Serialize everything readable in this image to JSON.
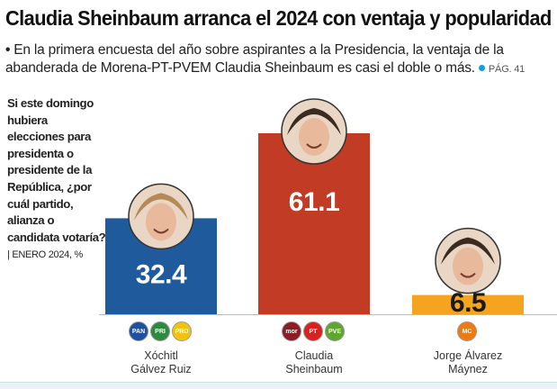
{
  "headline": "Claudia Sheinbaum arranca el 2024 con ventaja y popularidad",
  "subhead": {
    "text": "En la primera encuesta del año sobre aspirantes a la Presidencia, la ventaja de la abanderada de Morena-PT-PVEM Claudia Sheinbaum es casi el doble o más.",
    "page_ref": "PÁG. 41"
  },
  "question": {
    "text": "Si este domingo hubiera elecciones para presidenta o presidente de la República, ¿por cuál partido, alianza o candidata votaría?",
    "source": "| ENERO 2024, %"
  },
  "colors": {
    "xochitl_bar": "#1f5a9c",
    "claudia_bar": "#c23b24",
    "jorge_bar": "#f4a41f",
    "value_light": "#ffffff",
    "value_dark": "#1a1a1a"
  },
  "chart_data": {
    "type": "bar",
    "categories": [
      "Xóchitl Gálvez Ruiz",
      "Claudia Sheinbaum",
      "Jorge Álvarez Máynez"
    ],
    "values": [
      32.4,
      61.1,
      6.5
    ],
    "value_labels": [
      "32.4",
      "61.1",
      "6.5"
    ],
    "title": "",
    "xlabel": "",
    "ylabel": "",
    "ylim": [
      0,
      70
    ],
    "grid": false,
    "legend": "none"
  },
  "candidates": [
    {
      "name_line1": "Xóchitl",
      "name_line2": "Gálvez Ruiz",
      "party_logos": [
        "PAN",
        "PRI",
        "PRD"
      ],
      "photo_icon": "portrait-icon"
    },
    {
      "name_line1": "Claudia",
      "name_line2": "Sheinbaum",
      "party_logos": [
        "morena",
        "PT",
        "PVEM"
      ],
      "photo_icon": "portrait-icon"
    },
    {
      "name_line1": "Jorge Álvarez",
      "name_line2": "Máynez",
      "party_logos": [
        "MC"
      ],
      "photo_icon": "portrait-icon"
    }
  ]
}
